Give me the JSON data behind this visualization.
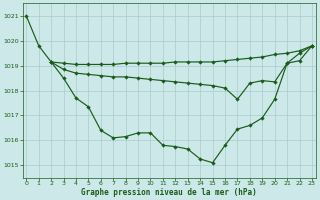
{
  "background_color": "#cce8e8",
  "grid_color": "#aacccc",
  "line_color": "#1a5c1a",
  "xlabel": "Graphe pression niveau de la mer (hPa)",
  "ylim": [
    1014.5,
    1021.5
  ],
  "xlim": [
    -0.3,
    23.3
  ],
  "yticks": [
    1015,
    1016,
    1017,
    1018,
    1019,
    1020,
    1021
  ],
  "xticks": [
    0,
    1,
    2,
    3,
    4,
    5,
    6,
    7,
    8,
    9,
    10,
    11,
    12,
    13,
    14,
    15,
    16,
    17,
    18,
    19,
    20,
    21,
    22,
    23
  ],
  "s1_x": [
    0,
    1,
    2,
    3,
    4,
    5,
    6,
    7,
    8,
    9,
    10,
    11,
    12,
    13,
    14,
    15,
    16,
    17,
    18,
    19,
    20,
    21,
    22,
    23
  ],
  "s1_y": [
    1021.0,
    1019.8,
    1019.15,
    1019.1,
    1019.05,
    1019.05,
    1019.05,
    1019.05,
    1019.1,
    1019.1,
    1019.1,
    1019.1,
    1019.15,
    1019.15,
    1019.15,
    1019.15,
    1019.2,
    1019.25,
    1019.3,
    1019.35,
    1019.45,
    1019.5,
    1019.6,
    1019.8
  ],
  "s2_x": [
    2,
    3,
    4,
    5,
    6,
    7,
    8,
    9,
    10,
    11,
    12,
    13,
    14,
    15,
    16,
    17,
    18,
    19,
    20,
    21,
    22,
    23
  ],
  "s2_y": [
    1019.15,
    1018.85,
    1018.7,
    1018.65,
    1018.6,
    1018.55,
    1018.55,
    1018.5,
    1018.45,
    1018.4,
    1018.35,
    1018.3,
    1018.25,
    1018.2,
    1018.1,
    1017.65,
    1018.3,
    1018.4,
    1018.35,
    1019.1,
    1019.2,
    1019.8
  ],
  "s3_x": [
    2,
    3,
    4,
    5,
    6,
    7,
    8,
    9,
    10,
    11,
    12,
    13,
    14,
    15,
    16,
    17,
    18,
    19,
    20,
    21,
    22,
    23
  ],
  "s3_y": [
    1019.15,
    1018.5,
    1017.7,
    1017.35,
    1016.4,
    1016.1,
    1016.15,
    1016.3,
    1016.3,
    1015.8,
    1015.75,
    1015.65,
    1015.25,
    1015.1,
    1015.8,
    1016.45,
    1016.6,
    1016.9,
    1017.65,
    1019.1,
    1019.5,
    1019.8
  ]
}
